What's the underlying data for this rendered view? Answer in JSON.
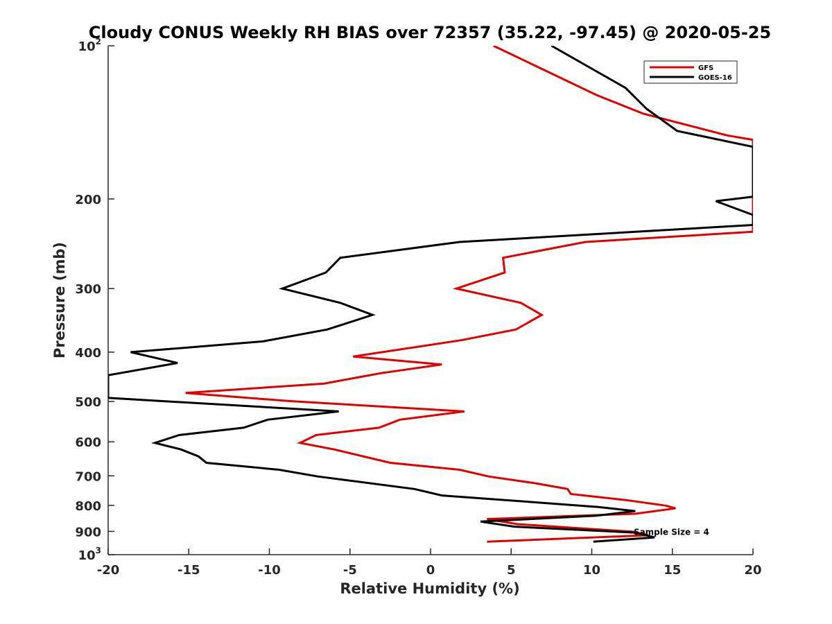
{
  "chart_data": {
    "type": "line",
    "title": "Cloudy CONUS Weekly RH BIAS over 72357 (35.22, -97.45) @ 2020-05-25",
    "xlabel": "Relative Humidity (%)",
    "ylabel": "Pressure (mb)",
    "xlim": [
      -20,
      20
    ],
    "ylim": [
      100,
      1000
    ],
    "y_scale": "log",
    "y_reversed": true,
    "grid": false,
    "legend_position": "top-right",
    "x_ticks": [
      "-20",
      "-15",
      "-10",
      "-5",
      "0",
      "5",
      "10",
      "15",
      "20"
    ],
    "x_tick_values": [
      -20,
      -15,
      -10,
      -5,
      0,
      5,
      10,
      15,
      20
    ],
    "y_ticks": [
      {
        "value": 100,
        "base": "10",
        "exp": "2"
      },
      {
        "value": 200,
        "base": "200",
        "exp": ""
      },
      {
        "value": 300,
        "base": "300",
        "exp": ""
      },
      {
        "value": 400,
        "base": "400",
        "exp": ""
      },
      {
        "value": 500,
        "base": "500",
        "exp": ""
      },
      {
        "value": 600,
        "base": "600",
        "exp": ""
      },
      {
        "value": 700,
        "base": "700",
        "exp": ""
      },
      {
        "value": 800,
        "base": "800",
        "exp": ""
      },
      {
        "value": 900,
        "base": "900",
        "exp": ""
      },
      {
        "value": 1000,
        "base": "10",
        "exp": "3"
      }
    ],
    "series": [
      {
        "name": "GFS",
        "color": "#e00000",
        "points": [
          [
            3.9,
            100
          ],
          [
            10.3,
            125
          ],
          [
            13.2,
            136
          ],
          [
            18.4,
            150
          ],
          [
            20,
            153
          ],
          [
            20,
            232
          ],
          [
            9.6,
            243
          ],
          [
            4.5,
            261
          ],
          [
            4.6,
            279
          ],
          [
            1.6,
            300
          ],
          [
            5.6,
            320
          ],
          [
            6.9,
            338
          ],
          [
            5.3,
            361
          ],
          [
            1.9,
            379
          ],
          [
            -4.8,
            408
          ],
          [
            0.7,
            423
          ],
          [
            -3.1,
            440
          ],
          [
            -6.6,
            461
          ],
          [
            -15.2,
            481
          ],
          [
            -8.8,
            499
          ],
          [
            2.1,
            523
          ],
          [
            -1.9,
            543
          ],
          [
            -3.2,
            563
          ],
          [
            -7.1,
            582
          ],
          [
            -8.1,
            603
          ],
          [
            -6.0,
            621
          ],
          [
            -2.5,
            660
          ],
          [
            1.8,
            681
          ],
          [
            3.6,
            702
          ],
          [
            6.5,
            724
          ],
          [
            8.5,
            743
          ],
          [
            8.7,
            760
          ],
          [
            12.1,
            781
          ],
          [
            14.6,
            801
          ],
          [
            15.2,
            811
          ],
          [
            12.7,
            831
          ],
          [
            3.5,
            851
          ],
          [
            5.4,
            871
          ],
          [
            12.5,
            901
          ],
          [
            13.5,
            916
          ],
          [
            3.5,
            943
          ]
        ]
      },
      {
        "name": "GOES-16",
        "color": "#000000",
        "points": [
          [
            7.5,
            100
          ],
          [
            12.1,
            121
          ],
          [
            13.4,
            133
          ],
          [
            15.3,
            147
          ],
          [
            20,
            158
          ],
          [
            20,
            198
          ],
          [
            17.7,
            202
          ],
          [
            20,
            215
          ],
          [
            20,
            225
          ],
          [
            1.8,
            243
          ],
          [
            -5.6,
            261
          ],
          [
            -6.5,
            279
          ],
          [
            -9.2,
            300
          ],
          [
            -5.6,
            320
          ],
          [
            -3.6,
            338
          ],
          [
            -6.4,
            361
          ],
          [
            -10.4,
            381
          ],
          [
            -18.6,
            400
          ],
          [
            -15.7,
            420
          ],
          [
            -19.3,
            440
          ],
          [
            -20,
            444
          ],
          [
            -20,
            492
          ],
          [
            -5.7,
            523
          ],
          [
            -10.1,
            543
          ],
          [
            -11.6,
            563
          ],
          [
            -15.6,
            582
          ],
          [
            -17.1,
            603
          ],
          [
            -15.5,
            621
          ],
          [
            -14.4,
            641
          ],
          [
            -13.9,
            660
          ],
          [
            -9.4,
            681
          ],
          [
            -7.0,
            702
          ],
          [
            -1.0,
            743
          ],
          [
            0.7,
            765
          ],
          [
            4.6,
            781
          ],
          [
            10.4,
            806
          ],
          [
            12.7,
            821
          ],
          [
            10.3,
            838
          ],
          [
            3.1,
            861
          ],
          [
            5.2,
            881
          ],
          [
            12.7,
            905
          ],
          [
            13.9,
            925
          ],
          [
            10.1,
            943
          ]
        ]
      }
    ],
    "annotations": [
      {
        "text": "Sample Size = 4",
        "x": 12.6,
        "y": 900
      }
    ]
  }
}
